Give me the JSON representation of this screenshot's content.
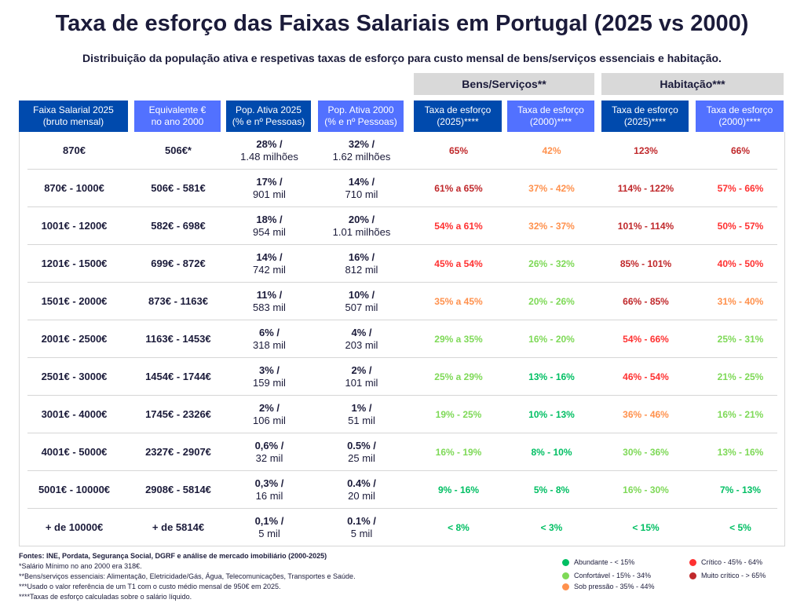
{
  "title": "Taxa de esforço das Faixas Salariais em Portugal (2025 vs 2000)",
  "subtitle": "Distribuição da população ativa e respetivas taxas de esforço para custo mensal de bens/serviços essenciais e habitação.",
  "groups": [
    "Bens/Serviços**",
    "Habitação***"
  ],
  "headers": [
    "Faixa Salarial 2025\n(bruto mensal)",
    "Equivalente €\nno ano 2000",
    "Pop. Ativa 2025\n(% e nº Pessoas)",
    "Pop. Ativa 2000\n(% e nº Pessoas)",
    "Taxa de esforço\n(2025)****",
    "Taxa de esforço\n(2000)****",
    "Taxa de esforço\n(2025)****",
    "Taxa de esforço\n(2000)****"
  ],
  "colors": {
    "header_dark": "#004aad",
    "header_light": "#5271ff",
    "abundante": "#00bf63",
    "confortavel": "#7ed957",
    "sob_pressao": "#ff914d",
    "critico": "#ff3131",
    "muito_critico": "#c0282b"
  },
  "rows": [
    {
      "faixa": "870€",
      "equiv": "506€*",
      "p25": "28% /",
      "p25n": "1.48 milhões",
      "p00": "32% /",
      "p00n": "1.62 milhões",
      "bs25": "65%",
      "bs25c": "muito_critico",
      "bs00": "42%",
      "bs00c": "sob_pressao",
      "h25": "123%",
      "h25c": "muito_critico",
      "h00": "66%",
      "h00c": "muito_critico"
    },
    {
      "faixa": "870€ - 1000€",
      "equiv": "506€ - 581€",
      "p25": "17% /",
      "p25n": "901 mil",
      "p00": "14% /",
      "p00n": "710 mil",
      "bs25": "61% a 65%",
      "bs25c": "muito_critico",
      "bs00": "37% - 42%",
      "bs00c": "sob_pressao",
      "h25": "114% - 122%",
      "h25c": "muito_critico",
      "h00": "57% - 66%",
      "h00c": "critico"
    },
    {
      "faixa": "1001€ - 1200€",
      "equiv": "582€ - 698€",
      "p25": "18% /",
      "p25n": "954 mil",
      "p00": "20% /",
      "p00n": "1.01 milhões",
      "bs25": "54% a 61%",
      "bs25c": "critico",
      "bs00": "32% - 37%",
      "bs00c": "sob_pressao",
      "h25": "101% - 114%",
      "h25c": "muito_critico",
      "h00": "50% - 57%",
      "h00c": "critico"
    },
    {
      "faixa": "1201€ - 1500€",
      "equiv": "699€ - 872€",
      "p25": "14% /",
      "p25n": "742 mil",
      "p00": "16% /",
      "p00n": "812 mil",
      "bs25": "45% a 54%",
      "bs25c": "critico",
      "bs00": "26% - 32%",
      "bs00c": "confortavel",
      "h25": "85% - 101%",
      "h25c": "muito_critico",
      "h00": "40% - 50%",
      "h00c": "critico"
    },
    {
      "faixa": "1501€ - 2000€",
      "equiv": "873€ - 1163€",
      "p25": "11% /",
      "p25n": "583 mil",
      "p00": "10% /",
      "p00n": "507 mil",
      "bs25": "35% a 45%",
      "bs25c": "sob_pressao",
      "bs00": "20% - 26%",
      "bs00c": "confortavel",
      "h25": "66% - 85%",
      "h25c": "muito_critico",
      "h00": "31% - 40%",
      "h00c": "sob_pressao"
    },
    {
      "faixa": "2001€ - 2500€",
      "equiv": "1163€ - 1453€",
      "p25": "6% /",
      "p25n": "318 mil",
      "p00": "4% /",
      "p00n": "203 mil",
      "bs25": "29% a 35%",
      "bs25c": "confortavel",
      "bs00": "16% - 20%",
      "bs00c": "confortavel",
      "h25": "54% - 66%",
      "h25c": "critico",
      "h00": "25% - 31%",
      "h00c": "confortavel"
    },
    {
      "faixa": "2501€ - 3000€",
      "equiv": "1454€ - 1744€",
      "p25": "3% /",
      "p25n": "159 mil",
      "p00": "2% /",
      "p00n": "101 mil",
      "bs25": "25% a 29%",
      "bs25c": "confortavel",
      "bs00": "13% - 16%",
      "bs00c": "abundante",
      "h25": "46% - 54%",
      "h25c": "critico",
      "h00": "21% - 25%",
      "h00c": "confortavel"
    },
    {
      "faixa": "3001€ - 4000€",
      "equiv": "1745€ - 2326€",
      "p25": "2% /",
      "p25n": "106 mil",
      "p00": "1% /",
      "p00n": "51 mil",
      "bs25": "19% - 25%",
      "bs25c": "confortavel",
      "bs00": "10% - 13%",
      "bs00c": "abundante",
      "h25": "36% - 46%",
      "h25c": "sob_pressao",
      "h00": "16% - 21%",
      "h00c": "confortavel"
    },
    {
      "faixa": "4001€ - 5000€",
      "equiv": "2327€ - 2907€",
      "p25": "0,6% /",
      "p25n": "32 mil",
      "p00": "0.5% /",
      "p00n": "25 mil",
      "bs25": "16% - 19%",
      "bs25c": "confortavel",
      "bs00": "8% - 10%",
      "bs00c": "abundante",
      "h25": "30% - 36%",
      "h25c": "confortavel",
      "h00": "13% - 16%",
      "h00c": "confortavel"
    },
    {
      "faixa": "5001€ - 10000€",
      "equiv": "2908€ - 5814€",
      "p25": "0,3% /",
      "p25n": "16 mil",
      "p00": "0.4% /",
      "p00n": "20 mil",
      "bs25": "9% - 16%",
      "bs25c": "abundante",
      "bs00": "5% - 8%",
      "bs00c": "abundante",
      "h25": "16% - 30%",
      "h25c": "confortavel",
      "h00": "7% - 13%",
      "h00c": "abundante"
    },
    {
      "faixa": "+ de 10000€",
      "equiv": "+ de 5814€",
      "p25": "0,1% /",
      "p25n": "5 mil",
      "p00": "0.1% /",
      "p00n": "5 mil",
      "bs25": "< 8%",
      "bs25c": "abundante",
      "bs00": "< 3%",
      "bs00c": "abundante",
      "h25": "< 15%",
      "h25c": "abundante",
      "h00": "< 5%",
      "h00c": "abundante"
    }
  ],
  "footer": {
    "sources": "Fontes: INE, Pordata, Segurança Social, DGRF e análise de mercado imobiliário (2000-2025)",
    "notes": [
      "*Salário Mínimo no ano 2000 era 318€.",
      "**Bens/serviços essenciais: Alimentação, Eletricidade/Gás, Água, Telecomunicações, Transportes e Saúde.",
      "***Usado o valor referência de um T1 com o custo médio mensal de 950€ em 2025.",
      "****Taxas de esforço calculadas sobre o salário líquido."
    ]
  },
  "legend": [
    {
      "key": "abundante",
      "label": "Abundante - < 15%"
    },
    {
      "key": "confortavel",
      "label": "Confortável - 15% - 34%"
    },
    {
      "key": "sob_pressao",
      "label": "Sob pressão - 35% - 44%"
    },
    {
      "key": "critico",
      "label": "Crítico - 45% - 64%"
    },
    {
      "key": "muito_critico",
      "label": "Muito crítico - > 65%"
    }
  ]
}
